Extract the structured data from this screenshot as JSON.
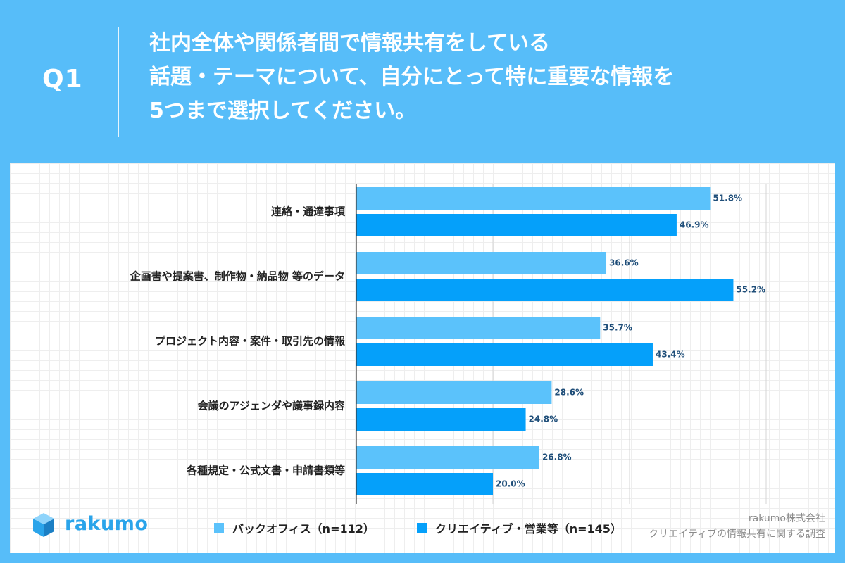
{
  "header": {
    "q_label": "Q1",
    "question_lines": [
      "社内全体や関係者間で情報共有をしている",
      "話題・テーマについて、自分にとって特に重要な情報を",
      "5つまで選択してください。"
    ]
  },
  "brand": {
    "name": "rakumo"
  },
  "credit": {
    "company": "rakumo株式会社",
    "survey": "クリエイティブの情報共有に関する調査"
  },
  "colors": {
    "background": "#57bdf9",
    "series_backoffice": "#5bc2fb",
    "series_creative": "#05a0fa",
    "value_label": "#1f4e79"
  },
  "chart_data": {
    "type": "bar",
    "orientation": "horizontal",
    "categories": [
      "連絡・通達事項",
      "企画書や提案書、制作物・納品物 等のデータ",
      "プロジェクト内容・案件・取引先の情報",
      "会議のアジェンダや議事録内容",
      "各種規定・公式文書・申請書類等"
    ],
    "series": [
      {
        "name": "バックオフィス（n=112）",
        "values": [
          51.8,
          36.6,
          35.7,
          28.6,
          26.8
        ]
      },
      {
        "name": "クリエイティブ・営業等（n=145）",
        "values": [
          46.9,
          55.2,
          43.4,
          24.8,
          20.0
        ]
      }
    ],
    "value_labels": [
      [
        "51.8%",
        "36.6%",
        "35.7%",
        "28.6%",
        "26.8%"
      ],
      [
        "46.9%",
        "55.2%",
        "43.4%",
        "24.8%",
        "20.0%"
      ]
    ],
    "xlim": [
      0,
      60
    ],
    "grid": true,
    "legend_position": "bottom"
  }
}
